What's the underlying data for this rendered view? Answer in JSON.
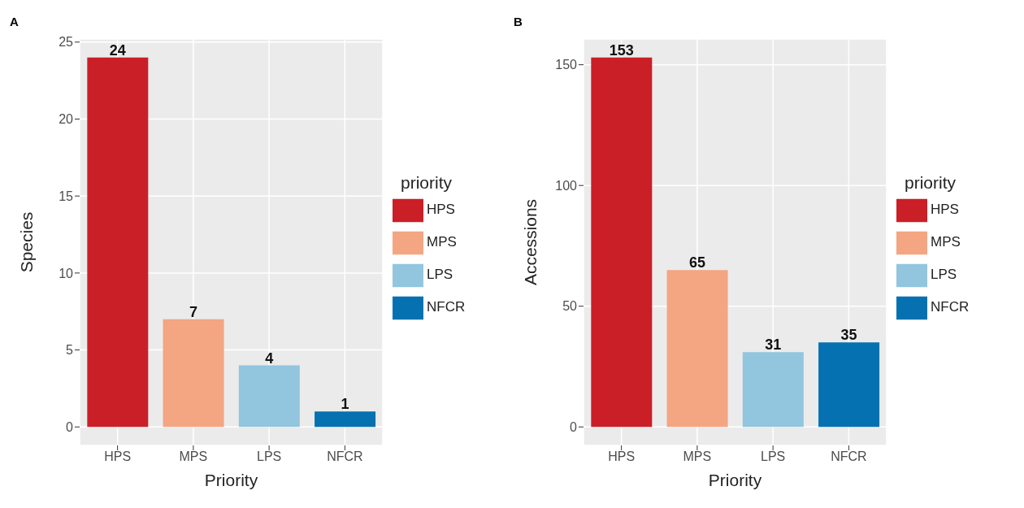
{
  "chart_data": [
    {
      "type": "bar",
      "title": "A",
      "categories": [
        "HPS",
        "MPS",
        "LPS",
        "NFCR"
      ],
      "stacked": true,
      "series": [
        {
          "name": "HPS",
          "color": "#ca1f27",
          "values": [
            24,
            null,
            null,
            null
          ]
        },
        {
          "name": "MPS",
          "color": "#f4a582",
          "values": [
            null,
            7,
            null,
            null
          ]
        },
        {
          "name": "LPS",
          "color": "#92c5de",
          "values": [
            null,
            null,
            4,
            null
          ]
        },
        {
          "name": "NFCR",
          "color": "#0571b0",
          "values": [
            null,
            null,
            null,
            1
          ]
        }
      ],
      "xlabel": "Priority",
      "ylabel": "Species",
      "ylim": [
        -1.2,
        25.2
      ],
      "yticks": [
        0,
        5,
        10,
        15,
        20,
        25
      ],
      "grid": true,
      "data_labels": true,
      "legend": "right",
      "legend_title": "priority"
    },
    {
      "type": "bar",
      "title": "B",
      "categories": [
        "HPS",
        "MPS",
        "LPS",
        "NFCR"
      ],
      "stacked": true,
      "series": [
        {
          "name": "HPS",
          "color": "#ca1f27",
          "values": [
            153,
            null,
            null,
            null
          ]
        },
        {
          "name": "MPS",
          "color": "#f4a582",
          "values": [
            null,
            65,
            null,
            null
          ]
        },
        {
          "name": "LPS",
          "color": "#92c5de",
          "values": [
            null,
            null,
            31,
            null
          ]
        },
        {
          "name": "NFCR",
          "color": "#0571b0",
          "values": [
            null,
            null,
            null,
            35
          ]
        }
      ],
      "xlabel": "Priority",
      "ylabel": "Accessions",
      "ylim": [
        -7.65,
        160.65
      ],
      "yticks": [
        0,
        50,
        100,
        150
      ],
      "grid": true,
      "data_labels": true,
      "legend": "right",
      "legend_title": "priority"
    }
  ]
}
